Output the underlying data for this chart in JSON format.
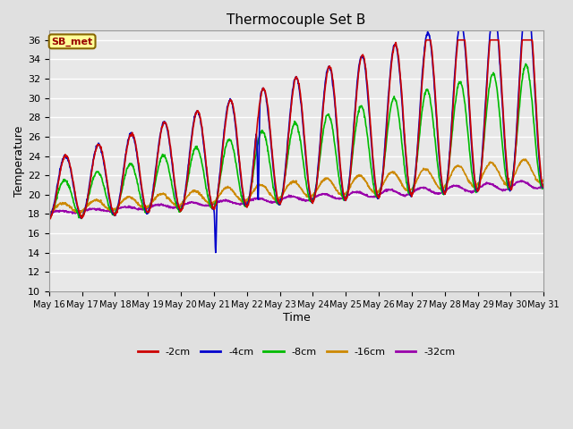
{
  "title": "Thermocouple Set B",
  "xlabel": "Time",
  "ylabel": "Temperature",
  "ylim": [
    10,
    37
  ],
  "yticks": [
    10,
    12,
    14,
    16,
    18,
    20,
    22,
    24,
    26,
    28,
    30,
    32,
    34,
    36
  ],
  "bg_color": "#e0e0e0",
  "plot_bg": "#e8e8e8",
  "grid_color": "white",
  "series": {
    "-2cm": {
      "color": "#cc0000",
      "lw": 1.2
    },
    "-4cm": {
      "color": "#0000cc",
      "lw": 1.2
    },
    "-8cm": {
      "color": "#00bb00",
      "lw": 1.2
    },
    "-16cm": {
      "color": "#cc8800",
      "lw": 1.2
    },
    "-32cm": {
      "color": "#9900aa",
      "lw": 1.2
    }
  },
  "legend_order": [
    "-2cm",
    "-4cm",
    "-8cm",
    "-16cm",
    "-32cm"
  ],
  "annotation_text": "SB_met",
  "annotation_color": "#990000",
  "annotation_bg": "#ffff99",
  "annotation_border": "#886600",
  "x_tick_labels": [
    "May 16",
    "May 17",
    "May 18",
    "May 19",
    "May 20",
    "May 21",
    "May 22",
    "May 23",
    "May 24",
    "May 25",
    "May 26",
    "May 27",
    "May 28",
    "May 29",
    "May 30",
    "May 31"
  ],
  "figsize": [
    6.4,
    4.8
  ],
  "dpi": 100
}
